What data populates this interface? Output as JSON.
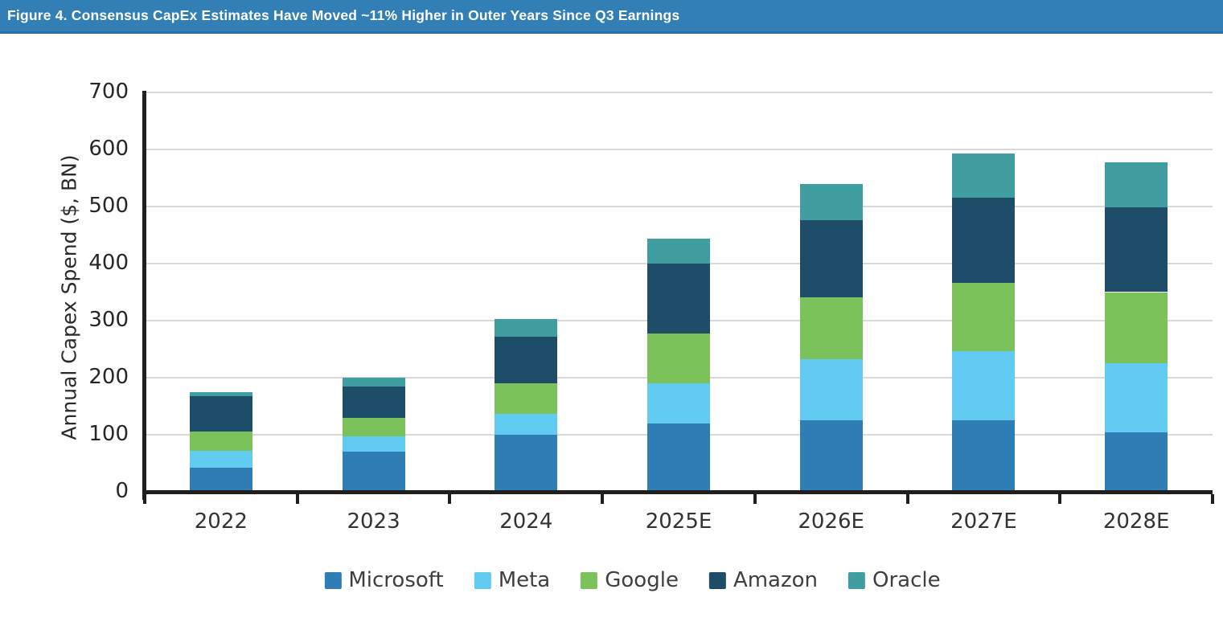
{
  "header": {
    "title": "Figure 4. Consensus CapEx Estimates Have Moved ~11% Higher in Outer Years Since Q3 Earnings",
    "background": "#327FB5"
  },
  "chart_data": {
    "type": "bar",
    "stacked": true,
    "title": "",
    "xlabel": "",
    "ylabel": "Annual Capex Spend ($, BN)",
    "categories": [
      "2022",
      "2023",
      "2024",
      "2025E",
      "2026E",
      "2027E",
      "2028E"
    ],
    "series": [
      {
        "name": "Microsoft",
        "color": "#2F7DB5",
        "values": [
          42,
          70,
          100,
          120,
          125,
          126,
          104
        ]
      },
      {
        "name": "Meta",
        "color": "#62CBF2",
        "values": [
          30,
          27,
          37,
          70,
          108,
          120,
          122
        ]
      },
      {
        "name": "Google",
        "color": "#7CC25B",
        "values": [
          33,
          33,
          53,
          88,
          108,
          120,
          124
        ]
      },
      {
        "name": "Amazon",
        "color": "#1E4D69",
        "values": [
          62,
          55,
          82,
          122,
          135,
          150,
          148
        ]
      },
      {
        "name": "Oracle",
        "color": "#419EA0",
        "values": [
          8,
          15,
          31,
          43,
          64,
          77,
          80
        ]
      }
    ],
    "ylim": [
      0,
      700
    ],
    "y_ticks": [
      0,
      100,
      200,
      300,
      400,
      500,
      600,
      700
    ],
    "grid": true,
    "legend_position": "bottom"
  },
  "colors": {
    "header_bg": "#327FB5",
    "header_border": "#2B6FA0",
    "axis": "#1F1F1F",
    "gridline": "#D9D9D9",
    "tick_label": "#262626",
    "legend_text": "#3F3F3F"
  }
}
